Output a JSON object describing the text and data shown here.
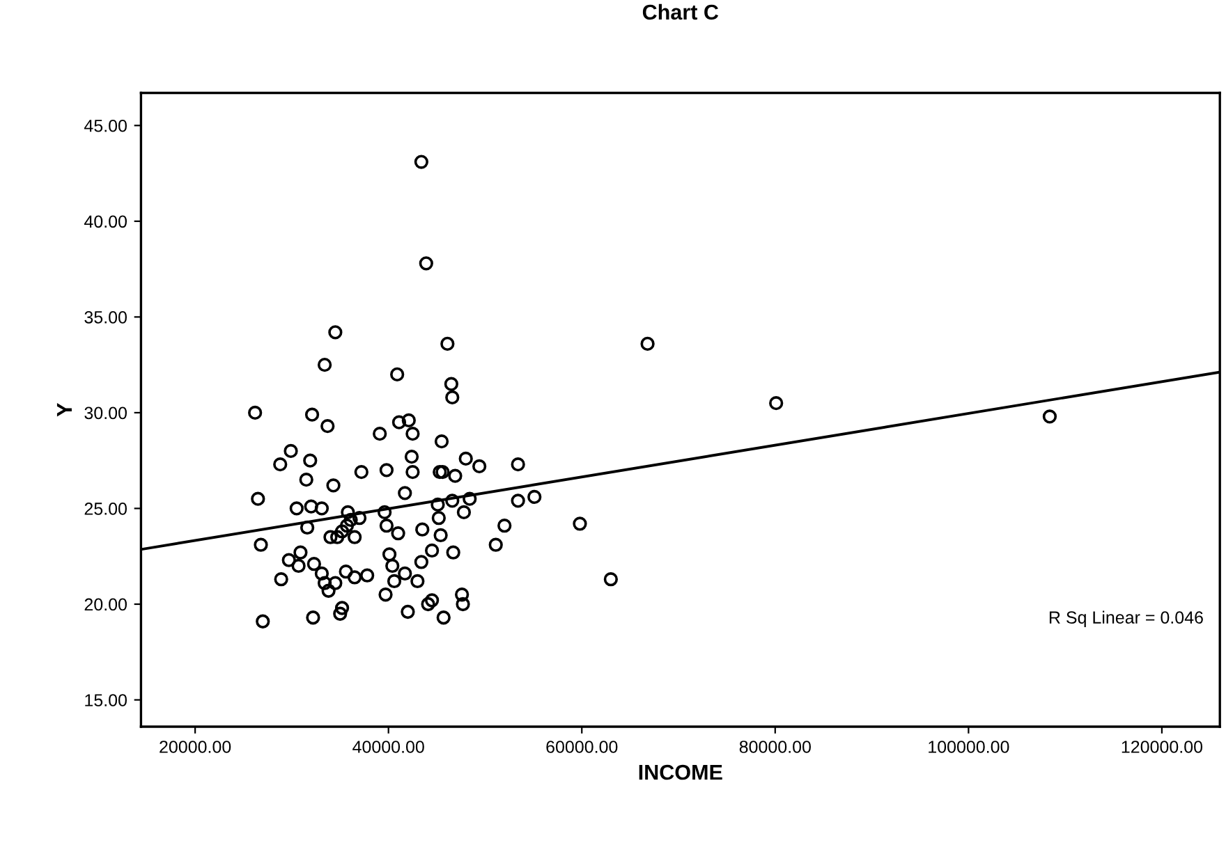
{
  "chart_data": {
    "type": "scatter",
    "title": "Chart C",
    "xlabel": "INCOME",
    "ylabel": "Y",
    "xlim": [
      14400,
      126000
    ],
    "ylim": [
      13.6,
      46.7
    ],
    "xticks": [
      {
        "value": 20000,
        "label": "20000.00"
      },
      {
        "value": 40000,
        "label": "40000.00"
      },
      {
        "value": 60000,
        "label": "60000.00"
      },
      {
        "value": 80000,
        "label": "80000.00"
      },
      {
        "value": 100000,
        "label": "100000.00"
      },
      {
        "value": 120000,
        "label": "120000.00"
      }
    ],
    "yticks": [
      {
        "value": 15,
        "label": "15.00"
      },
      {
        "value": 20,
        "label": "20.00"
      },
      {
        "value": 25,
        "label": "25.00"
      },
      {
        "value": 30,
        "label": "30.00"
      },
      {
        "value": 35,
        "label": "35.00"
      },
      {
        "value": 40,
        "label": "40.00"
      },
      {
        "value": 45,
        "label": "45.00"
      }
    ],
    "grid": false,
    "marker": "circle",
    "series": [
      {
        "color": "#000000",
        "x": [
          43400,
          43900,
          34500,
          46100,
          33400,
          40900,
          46500,
          46600,
          26200,
          32100,
          33700,
          41100,
          42100,
          39100,
          42500,
          45500,
          29900,
          28800,
          31900,
          42400,
          48000,
          49400,
          53400,
          31500,
          37200,
          39800,
          42500,
          45300,
          45600,
          46900,
          34300,
          26500,
          41700,
          30500,
          32000,
          33100,
          39600,
          35800,
          45100,
          46600,
          48400,
          53400,
          55100,
          47800,
          36100,
          37000,
          45200,
          31600,
          39800,
          35700,
          35200,
          43500,
          52000,
          59800,
          36500,
          41000,
          45400,
          34000,
          34700,
          26800,
          51100,
          44500,
          46700,
          40100,
          30900,
          29700,
          43400,
          40400,
          32300,
          30700,
          35600,
          37800,
          36500,
          33100,
          28900,
          41700,
          43000,
          40600,
          34500,
          33400,
          33800,
          63000,
          39700,
          47600,
          47700,
          44500,
          44100,
          35200,
          35000,
          42000,
          45700,
          32200,
          27000,
          66800,
          80100,
          108400
        ],
        "values": [
          43.1,
          37.8,
          34.2,
          33.6,
          32.5,
          32.0,
          31.5,
          30.8,
          30.0,
          29.9,
          29.3,
          29.5,
          29.6,
          28.9,
          28.9,
          28.5,
          28.0,
          27.3,
          27.5,
          27.7,
          27.6,
          27.2,
          27.3,
          26.5,
          26.9,
          27.0,
          26.9,
          26.9,
          26.9,
          26.7,
          26.2,
          25.5,
          25.8,
          25.0,
          25.1,
          25.0,
          24.8,
          24.8,
          25.2,
          25.4,
          25.5,
          25.4,
          25.6,
          24.8,
          24.4,
          24.5,
          24.5,
          24.0,
          24.1,
          24.1,
          23.8,
          23.9,
          24.1,
          24.2,
          23.5,
          23.7,
          23.6,
          23.5,
          23.5,
          23.1,
          23.1,
          22.8,
          22.7,
          22.6,
          22.7,
          22.3,
          22.2,
          22.0,
          22.1,
          22.0,
          21.7,
          21.5,
          21.4,
          21.6,
          21.3,
          21.6,
          21.2,
          21.2,
          21.1,
          21.1,
          20.7,
          21.3,
          20.5,
          20.5,
          20.0,
          20.2,
          20.0,
          19.8,
          19.5,
          19.6,
          19.3,
          19.3,
          19.1,
          33.6,
          30.5,
          29.8
        ]
      },
      {
        "type": "line",
        "color": "#000000",
        "marker": "none",
        "x": [
          14400,
          126000
        ],
        "values": [
          22.86,
          32.12
        ]
      }
    ],
    "annotations": [
      "R Sq Linear = 0.046"
    ]
  }
}
